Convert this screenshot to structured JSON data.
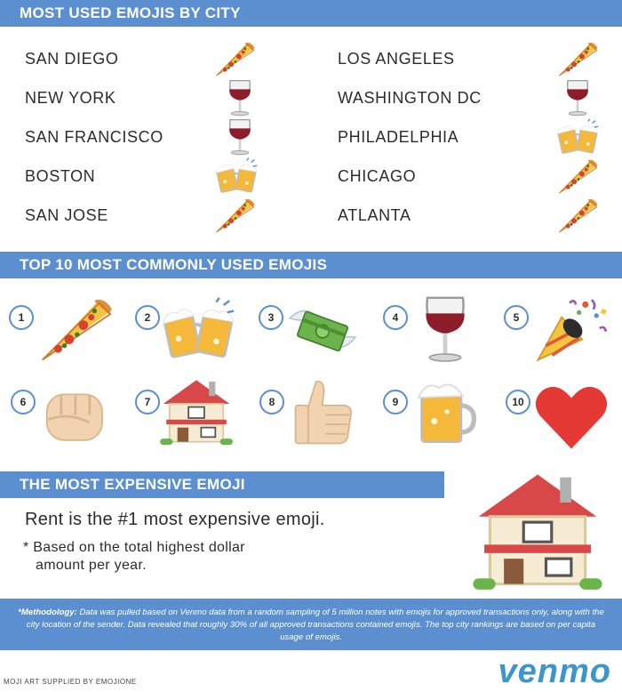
{
  "headers": {
    "by_city": "MOST USED EMOJIS BY CITY",
    "top10": "TOP 10 MOST COMMONLY USED EMOJIS",
    "expensive": "THE MOST EXPENSIVE EMOJI"
  },
  "cities": [
    {
      "name": "SAN DIEGO",
      "emoji": "pizza-icon"
    },
    {
      "name": "LOS ANGELES",
      "emoji": "pizza-icon"
    },
    {
      "name": "NEW YORK",
      "emoji": "wine-icon"
    },
    {
      "name": "WASHINGTON DC",
      "emoji": "wine-icon"
    },
    {
      "name": "SAN FRANCISCO",
      "emoji": "wine-icon"
    },
    {
      "name": "PHILADELPHIA",
      "emoji": "beers-icon"
    },
    {
      "name": "BOSTON",
      "emoji": "beers-icon"
    },
    {
      "name": "CHICAGO",
      "emoji": "pizza-icon"
    },
    {
      "name": "SAN JOSE",
      "emoji": "pizza-icon"
    },
    {
      "name": "ATLANTA",
      "emoji": "pizza-icon"
    }
  ],
  "top10": [
    {
      "rank": "1",
      "emoji": "pizza-icon"
    },
    {
      "rank": "2",
      "emoji": "beers-icon"
    },
    {
      "rank": "3",
      "emoji": "money-wings-icon"
    },
    {
      "rank": "4",
      "emoji": "wine-icon"
    },
    {
      "rank": "5",
      "emoji": "party-popper-icon"
    },
    {
      "rank": "6",
      "emoji": "fist-icon"
    },
    {
      "rank": "7",
      "emoji": "house-icon"
    },
    {
      "rank": "8",
      "emoji": "thumbs-up-icon"
    },
    {
      "rank": "9",
      "emoji": "beer-mug-icon"
    },
    {
      "rank": "10",
      "emoji": "heart-icon"
    }
  ],
  "expensive": {
    "main": "Rent is the #1 most expensive emoji.",
    "note_line1": "* Based on the total highest dollar",
    "note_line2": "amount per year.",
    "emoji": "house-icon"
  },
  "methodology": {
    "label": "*Methodology:",
    "text": "Data was pulled based on Venmo data from a random sampling of 5 million notes with emojis for approved transactions only, along with the city location of the sender. Data revealed that roughly 30% of all approved transactions contained emojis. The top city rankings are based on per capita usage of emojis."
  },
  "credit": "MOJI ART SUPPLIED BY EMOJIONE",
  "brand": "venmo",
  "colors": {
    "accent": "#5b8fcf",
    "brand": "#3d95ce"
  }
}
